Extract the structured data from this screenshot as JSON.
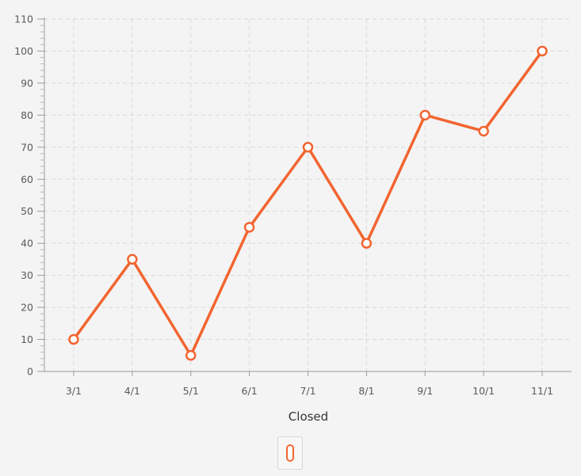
{
  "chart_data": {
    "type": "line",
    "title": "",
    "xlabel": "Closed",
    "ylabel": "",
    "categories": [
      "3/1",
      "4/1",
      "5/1",
      "6/1",
      "7/1",
      "8/1",
      "9/1",
      "10/1",
      "11/1"
    ],
    "series": [
      {
        "values": [
          10,
          35,
          5,
          45,
          70,
          40,
          80,
          75,
          100
        ],
        "color": "#f26530"
      }
    ],
    "ylim": [
      0,
      110
    ],
    "y_tick_step": 10,
    "grid": true,
    "grid_style": "dashed",
    "legend": "bottom-center"
  }
}
